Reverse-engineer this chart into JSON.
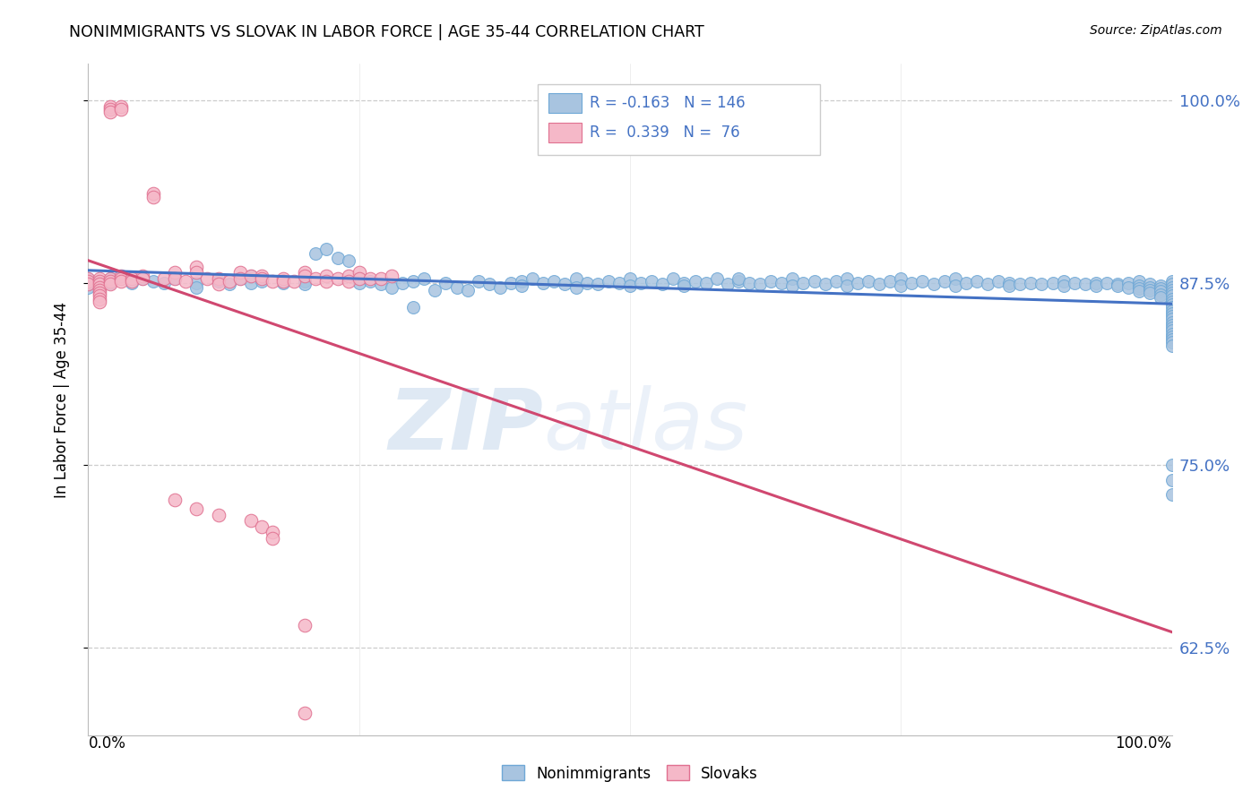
{
  "title": "NONIMMIGRANTS VS SLOVAK IN LABOR FORCE | AGE 35-44 CORRELATION CHART",
  "source": "Source: ZipAtlas.com",
  "ylabel": "In Labor Force | Age 35-44",
  "y_ticks": [
    0.625,
    0.75,
    0.875,
    1.0
  ],
  "y_tick_labels": [
    "62.5%",
    "75.0%",
    "87.5%",
    "100.0%"
  ],
  "xlim": [
    0.0,
    1.0
  ],
  "ylim": [
    0.565,
    1.025
  ],
  "blue_face": "#a8c4e0",
  "blue_edge": "#6fa8d6",
  "pink_face": "#f5b8c8",
  "pink_edge": "#e07090",
  "trend_blue": "#4472c4",
  "trend_pink": "#d04870",
  "tick_color": "#4472c4",
  "grid_color": "#cccccc",
  "R_blue": -0.163,
  "N_blue": 146,
  "R_pink": 0.339,
  "N_pink": 76,
  "watermark_zip": "ZIP",
  "watermark_atlas": "atlas",
  "nonimmigrant_points": [
    [
      0.0,
      0.878
    ],
    [
      0.0,
      0.876
    ],
    [
      0.0,
      0.874
    ],
    [
      0.0,
      0.872
    ],
    [
      0.01,
      0.876
    ],
    [
      0.01,
      0.874
    ],
    [
      0.02,
      0.878
    ],
    [
      0.02,
      0.875
    ],
    [
      0.03,
      0.88
    ],
    [
      0.04,
      0.875
    ],
    [
      0.05,
      0.878
    ],
    [
      0.06,
      0.876
    ],
    [
      0.07,
      0.875
    ],
    [
      0.08,
      0.878
    ],
    [
      0.1,
      0.875
    ],
    [
      0.1,
      0.872
    ],
    [
      0.12,
      0.876
    ],
    [
      0.13,
      0.874
    ],
    [
      0.14,
      0.878
    ],
    [
      0.15,
      0.88
    ],
    [
      0.15,
      0.875
    ],
    [
      0.16,
      0.876
    ],
    [
      0.18,
      0.875
    ],
    [
      0.2,
      0.876
    ],
    [
      0.2,
      0.874
    ],
    [
      0.21,
      0.895
    ],
    [
      0.22,
      0.898
    ],
    [
      0.23,
      0.892
    ],
    [
      0.24,
      0.89
    ],
    [
      0.25,
      0.878
    ],
    [
      0.25,
      0.875
    ],
    [
      0.26,
      0.876
    ],
    [
      0.27,
      0.874
    ],
    [
      0.28,
      0.872
    ],
    [
      0.29,
      0.875
    ],
    [
      0.3,
      0.858
    ],
    [
      0.3,
      0.876
    ],
    [
      0.31,
      0.878
    ],
    [
      0.32,
      0.87
    ],
    [
      0.33,
      0.875
    ],
    [
      0.34,
      0.872
    ],
    [
      0.35,
      0.87
    ],
    [
      0.36,
      0.876
    ],
    [
      0.37,
      0.874
    ],
    [
      0.38,
      0.872
    ],
    [
      0.39,
      0.875
    ],
    [
      0.4,
      0.876
    ],
    [
      0.4,
      0.873
    ],
    [
      0.41,
      0.878
    ],
    [
      0.42,
      0.875
    ],
    [
      0.43,
      0.876
    ],
    [
      0.44,
      0.874
    ],
    [
      0.45,
      0.878
    ],
    [
      0.45,
      0.872
    ],
    [
      0.46,
      0.875
    ],
    [
      0.47,
      0.874
    ],
    [
      0.48,
      0.876
    ],
    [
      0.49,
      0.875
    ],
    [
      0.5,
      0.878
    ],
    [
      0.5,
      0.873
    ],
    [
      0.51,
      0.875
    ],
    [
      0.52,
      0.876
    ],
    [
      0.53,
      0.874
    ],
    [
      0.54,
      0.878
    ],
    [
      0.55,
      0.875
    ],
    [
      0.55,
      0.873
    ],
    [
      0.56,
      0.876
    ],
    [
      0.57,
      0.875
    ],
    [
      0.58,
      0.878
    ],
    [
      0.59,
      0.874
    ],
    [
      0.6,
      0.876
    ],
    [
      0.6,
      0.878
    ],
    [
      0.61,
      0.875
    ],
    [
      0.62,
      0.874
    ],
    [
      0.63,
      0.876
    ],
    [
      0.64,
      0.875
    ],
    [
      0.65,
      0.878
    ],
    [
      0.65,
      0.873
    ],
    [
      0.66,
      0.875
    ],
    [
      0.67,
      0.876
    ],
    [
      0.68,
      0.874
    ],
    [
      0.69,
      0.876
    ],
    [
      0.7,
      0.878
    ],
    [
      0.7,
      0.873
    ],
    [
      0.71,
      0.875
    ],
    [
      0.72,
      0.876
    ],
    [
      0.73,
      0.874
    ],
    [
      0.74,
      0.876
    ],
    [
      0.75,
      0.878
    ],
    [
      0.75,
      0.873
    ],
    [
      0.76,
      0.875
    ],
    [
      0.77,
      0.876
    ],
    [
      0.78,
      0.874
    ],
    [
      0.79,
      0.876
    ],
    [
      0.8,
      0.878
    ],
    [
      0.8,
      0.873
    ],
    [
      0.81,
      0.875
    ],
    [
      0.82,
      0.876
    ],
    [
      0.83,
      0.874
    ],
    [
      0.84,
      0.876
    ],
    [
      0.85,
      0.875
    ],
    [
      0.85,
      0.873
    ],
    [
      0.86,
      0.874
    ],
    [
      0.87,
      0.875
    ],
    [
      0.88,
      0.874
    ],
    [
      0.89,
      0.875
    ],
    [
      0.9,
      0.876
    ],
    [
      0.9,
      0.873
    ],
    [
      0.91,
      0.875
    ],
    [
      0.92,
      0.874
    ],
    [
      0.93,
      0.875
    ],
    [
      0.93,
      0.873
    ],
    [
      0.94,
      0.875
    ],
    [
      0.95,
      0.874
    ],
    [
      0.95,
      0.873
    ],
    [
      0.96,
      0.875
    ],
    [
      0.96,
      0.872
    ],
    [
      0.97,
      0.876
    ],
    [
      0.97,
      0.873
    ],
    [
      0.97,
      0.871
    ],
    [
      0.97,
      0.869
    ],
    [
      0.98,
      0.874
    ],
    [
      0.98,
      0.872
    ],
    [
      0.98,
      0.87
    ],
    [
      0.98,
      0.868
    ],
    [
      0.99,
      0.873
    ],
    [
      0.99,
      0.871
    ],
    [
      0.99,
      0.869
    ],
    [
      0.99,
      0.867
    ],
    [
      0.99,
      0.865
    ],
    [
      1.0,
      0.876
    ],
    [
      1.0,
      0.874
    ],
    [
      1.0,
      0.872
    ],
    [
      1.0,
      0.87
    ],
    [
      1.0,
      0.868
    ],
    [
      1.0,
      0.866
    ],
    [
      1.0,
      0.864
    ],
    [
      1.0,
      0.862
    ],
    [
      1.0,
      0.86
    ],
    [
      1.0,
      0.858
    ],
    [
      1.0,
      0.856
    ],
    [
      1.0,
      0.854
    ],
    [
      1.0,
      0.852
    ],
    [
      1.0,
      0.85
    ],
    [
      1.0,
      0.848
    ],
    [
      1.0,
      0.846
    ],
    [
      1.0,
      0.844
    ],
    [
      1.0,
      0.842
    ],
    [
      1.0,
      0.84
    ],
    [
      1.0,
      0.838
    ],
    [
      1.0,
      0.836
    ],
    [
      1.0,
      0.834
    ],
    [
      1.0,
      0.832
    ],
    [
      1.0,
      0.75
    ],
    [
      1.0,
      0.74
    ],
    [
      1.0,
      0.73
    ]
  ],
  "slovak_points": [
    [
      0.0,
      0.878
    ],
    [
      0.0,
      0.876
    ],
    [
      0.0,
      0.874
    ],
    [
      0.01,
      0.878
    ],
    [
      0.01,
      0.876
    ],
    [
      0.01,
      0.874
    ],
    [
      0.01,
      0.872
    ],
    [
      0.01,
      0.87
    ],
    [
      0.01,
      0.868
    ],
    [
      0.01,
      0.866
    ],
    [
      0.01,
      0.864
    ],
    [
      0.01,
      0.862
    ],
    [
      0.02,
      0.996
    ],
    [
      0.02,
      0.994
    ],
    [
      0.02,
      0.992
    ],
    [
      0.02,
      0.878
    ],
    [
      0.02,
      0.876
    ],
    [
      0.02,
      0.874
    ],
    [
      0.03,
      0.996
    ],
    [
      0.03,
      0.994
    ],
    [
      0.03,
      0.88
    ],
    [
      0.03,
      0.878
    ],
    [
      0.03,
      0.876
    ],
    [
      0.04,
      0.878
    ],
    [
      0.04,
      0.876
    ],
    [
      0.05,
      0.88
    ],
    [
      0.05,
      0.878
    ],
    [
      0.06,
      0.936
    ],
    [
      0.06,
      0.934
    ],
    [
      0.07,
      0.878
    ],
    [
      0.08,
      0.882
    ],
    [
      0.08,
      0.878
    ],
    [
      0.09,
      0.876
    ],
    [
      0.1,
      0.886
    ],
    [
      0.1,
      0.882
    ],
    [
      0.11,
      0.878
    ],
    [
      0.12,
      0.878
    ],
    [
      0.12,
      0.874
    ],
    [
      0.13,
      0.876
    ],
    [
      0.14,
      0.882
    ],
    [
      0.14,
      0.878
    ],
    [
      0.15,
      0.88
    ],
    [
      0.16,
      0.88
    ],
    [
      0.16,
      0.878
    ],
    [
      0.17,
      0.876
    ],
    [
      0.18,
      0.878
    ],
    [
      0.18,
      0.876
    ],
    [
      0.19,
      0.876
    ],
    [
      0.2,
      0.882
    ],
    [
      0.2,
      0.88
    ],
    [
      0.21,
      0.878
    ],
    [
      0.22,
      0.88
    ],
    [
      0.22,
      0.876
    ],
    [
      0.23,
      0.878
    ],
    [
      0.24,
      0.88
    ],
    [
      0.24,
      0.876
    ],
    [
      0.25,
      0.882
    ],
    [
      0.25,
      0.878
    ],
    [
      0.26,
      0.878
    ],
    [
      0.27,
      0.878
    ],
    [
      0.28,
      0.88
    ],
    [
      0.08,
      0.726
    ],
    [
      0.1,
      0.72
    ],
    [
      0.12,
      0.716
    ],
    [
      0.15,
      0.712
    ],
    [
      0.16,
      0.708
    ],
    [
      0.17,
      0.704
    ],
    [
      0.17,
      0.7
    ],
    [
      0.2,
      0.64
    ],
    [
      0.2,
      0.58
    ]
  ]
}
